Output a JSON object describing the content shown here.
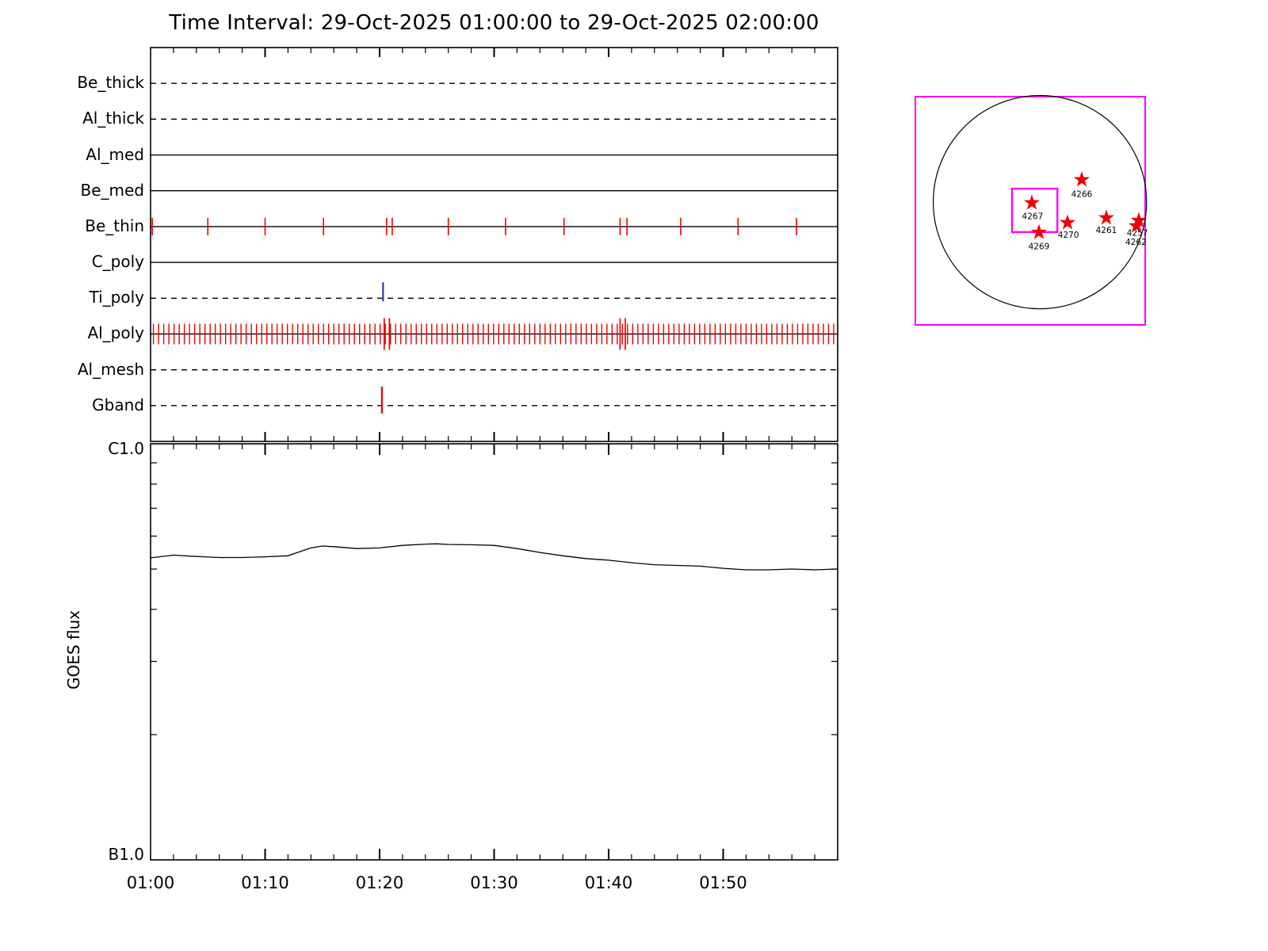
{
  "title": "Time Interval: 29-Oct-2025 01:00:00 to 29-Oct-2025 02:00:00",
  "colors": {
    "axis": "#000000",
    "tick_red": "#ee0000",
    "tick_blue": "#3333bb",
    "map_magenta": "#ff00ff",
    "star_red": "#ee0000",
    "background": "#ffffff"
  },
  "chart_data": [
    {
      "type": "timeline",
      "name": "xrt-filter-timeline",
      "x_range_minutes": [
        0,
        60
      ],
      "x_start_time": "01:00",
      "x_end_time": "02:00",
      "rows": [
        {
          "label": "Be_thick",
          "line_style": "dashed",
          "ticks": []
        },
        {
          "label": "Al_thick",
          "line_style": "dashed",
          "ticks": []
        },
        {
          "label": "Al_med",
          "line_style": "solid",
          "ticks": []
        },
        {
          "label": "Be_med",
          "line_style": "solid",
          "ticks": []
        },
        {
          "label": "Be_thin",
          "line_style": "solid",
          "tick_color": "red",
          "ticks": [
            0.15,
            5,
            10,
            15.1,
            20.6,
            21.1,
            26,
            31,
            36.1,
            41,
            41.6,
            46.3,
            51.3,
            56.4
          ]
        },
        {
          "label": "C_poly",
          "line_style": "solid",
          "ticks": []
        },
        {
          "label": "Ti_poly",
          "line_style": "dashed",
          "tick_color": "blue",
          "ticks": [
            20.3
          ],
          "tick_extent": [
            -20,
            4
          ]
        },
        {
          "label": "Al_poly",
          "line_style": "solid",
          "tick_color": "red",
          "dense_ticks": {
            "start": 0.25,
            "end": 59.9,
            "step": 0.45
          },
          "tall_ticks": [
            20.4,
            20.85,
            41.0,
            41.45
          ]
        },
        {
          "label": "Al_mesh",
          "line_style": "dashed",
          "ticks": []
        },
        {
          "label": "Gband",
          "line_style": "dashed",
          "tick_color": "red",
          "ticks": [
            20.2
          ],
          "tick_extent": [
            -24,
            10
          ]
        }
      ]
    },
    {
      "type": "line",
      "name": "goes-flux-panel",
      "ylabel": "GOES flux",
      "y_top_label": "C1.0",
      "y_bottom_label": "B1.0",
      "y_scale": "log",
      "y_range_watts": [
        1e-07,
        1e-06
      ],
      "x_tick_labels": [
        "01:00",
        "01:10",
        "01:20",
        "01:30",
        "01:40",
        "01:50"
      ],
      "x_major_tick_minutes": 10,
      "x_minor_tick_minutes": 2,
      "series": [
        {
          "name": "goes-flux-curve",
          "x_minutes": [
            0,
            2,
            4,
            6,
            8,
            10,
            12,
            13,
            14,
            15,
            16,
            18,
            20,
            22,
            24,
            25,
            26,
            28,
            30,
            32,
            34,
            36,
            38,
            40,
            42,
            44,
            46,
            48,
            50,
            52,
            54,
            56,
            58,
            60
          ],
          "flux_1e7": [
            5.32,
            5.4,
            5.36,
            5.33,
            5.33,
            5.35,
            5.38,
            5.5,
            5.62,
            5.68,
            5.66,
            5.6,
            5.62,
            5.7,
            5.74,
            5.75,
            5.73,
            5.72,
            5.7,
            5.6,
            5.48,
            5.38,
            5.3,
            5.25,
            5.18,
            5.12,
            5.1,
            5.08,
            5.02,
            4.98,
            4.98,
            5.0,
            4.98,
            5.0
          ]
        }
      ]
    },
    {
      "type": "solar-map",
      "name": "full-disk-pointing-map",
      "disk": {
        "cx": 0.542,
        "cy": 0.462,
        "r": 0.464
      },
      "fov_box": {
        "fx": 0.421,
        "fy": 0.403,
        "fw": 0.197,
        "fh": 0.19
      },
      "active_regions": [
        {
          "noaa": "4266",
          "fx": 0.724,
          "fy": 0.364,
          "label_fx": 0.724,
          "label_fy": 0.44
        },
        {
          "noaa": "4267",
          "fx": 0.507,
          "fy": 0.465,
          "label_fx": 0.51,
          "label_fy": 0.537
        },
        {
          "noaa": "4269",
          "fx": 0.538,
          "fy": 0.594,
          "label_fx": 0.538,
          "label_fy": 0.668
        },
        {
          "noaa": "4270",
          "fx": 0.662,
          "fy": 0.552,
          "label_fx": 0.666,
          "label_fy": 0.618
        },
        {
          "noaa": "4261",
          "fx": 0.831,
          "fy": 0.531,
          "label_fx": 0.831,
          "label_fy": 0.597
        },
        {
          "noaa": "4257",
          "fx": 0.972,
          "fy": 0.542,
          "label_fx": 0.966,
          "label_fy": 0.61
        },
        {
          "noaa": "4262",
          "fx": 0.962,
          "fy": 0.566,
          "label_fx": 0.96,
          "label_fy": 0.65
        }
      ]
    }
  ]
}
